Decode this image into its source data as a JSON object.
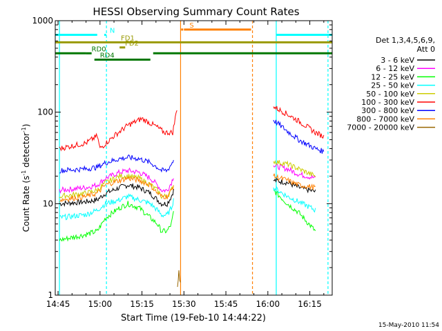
{
  "chart_data": {
    "type": "line",
    "title": "HESSI Observing Summary Count Rates",
    "xlabel": "Start Time (19-Feb-10 14:44:22)",
    "ylabel_main": "Count Rate (s",
    "ylabel_sup1": "-1",
    "ylabel_mid": " detector",
    "ylabel_sup2": "-1",
    "ylabel_end": ")",
    "y_scale": "log",
    "ylim": [
      1,
      1000
    ],
    "xlim_minutes": [
      -1,
      98
    ],
    "x_ticks": [
      {
        "t": 0,
        "label": "14:45"
      },
      {
        "t": 15,
        "label": "15:00"
      },
      {
        "t": 30,
        "label": "15:15"
      },
      {
        "t": 45,
        "label": "15:30"
      },
      {
        "t": 60,
        "label": "15:45"
      },
      {
        "t": 75,
        "label": "16:00"
      },
      {
        "t": 90,
        "label": "16:15"
      }
    ],
    "y_ticks": [
      {
        "v": 1,
        "label": "1"
      },
      {
        "v": 10,
        "label": "10"
      },
      {
        "v": 100,
        "label": "100"
      },
      {
        "v": 1000,
        "label": "1000"
      }
    ],
    "legend_header": [
      "Det 1,3,4,5,6,9,",
      "Att 0"
    ],
    "legend_placement": "right",
    "series": [
      {
        "name": "3 - 6 keV",
        "color": "#000000",
        "values": [
          [
            0.5,
            10
          ],
          [
            10,
            10.5
          ],
          [
            14,
            11
          ],
          [
            17,
            13
          ],
          [
            22,
            15
          ],
          [
            25,
            16
          ],
          [
            29,
            15
          ],
          [
            33,
            13
          ],
          [
            35.5,
            11
          ],
          [
            37,
            10
          ],
          [
            39,
            10
          ],
          [
            40.5,
            12
          ],
          [
            41.3,
            14
          ],
          [
            77,
            18
          ],
          [
            82,
            17
          ],
          [
            86,
            15
          ],
          [
            92,
            13.5
          ]
        ]
      },
      {
        "name": "6 - 12 keV",
        "color": "#ff00ff",
        "values": [
          [
            0.5,
            14
          ],
          [
            10,
            15
          ],
          [
            14,
            16
          ],
          [
            17,
            19
          ],
          [
            22,
            22
          ],
          [
            25,
            23
          ],
          [
            29,
            22
          ],
          [
            33,
            19
          ],
          [
            35.5,
            16
          ],
          [
            37,
            14
          ],
          [
            39,
            14
          ],
          [
            40.5,
            17
          ],
          [
            41.3,
            20
          ],
          [
            77,
            26
          ],
          [
            82,
            24
          ],
          [
            86,
            21
          ],
          [
            92,
            19
          ]
        ]
      },
      {
        "name": "12 - 25 keV",
        "color": "#00ff00",
        "values": [
          [
            0.5,
            4
          ],
          [
            10,
            4.6
          ],
          [
            14,
            5
          ],
          [
            17,
            7
          ],
          [
            22,
            9
          ],
          [
            25,
            10
          ],
          [
            29,
            9
          ],
          [
            33,
            7
          ],
          [
            35.5,
            6
          ],
          [
            37,
            5
          ],
          [
            39,
            5
          ],
          [
            40.5,
            6
          ],
          [
            41.3,
            8
          ],
          [
            77,
            14
          ],
          [
            82,
            10
          ],
          [
            86,
            8
          ],
          [
            92,
            5
          ]
        ]
      },
      {
        "name": "25 - 50 keV",
        "color": "#00ffff",
        "values": [
          [
            0.5,
            7
          ],
          [
            10,
            7.6
          ],
          [
            14,
            8.5
          ],
          [
            17,
            10
          ],
          [
            22,
            11
          ],
          [
            25,
            12
          ],
          [
            29,
            11
          ],
          [
            33,
            10
          ],
          [
            35.5,
            8.5
          ],
          [
            37,
            7.5
          ],
          [
            39,
            7.5
          ],
          [
            40.5,
            9
          ],
          [
            41.3,
            11
          ],
          [
            77,
            15
          ],
          [
            82,
            12
          ],
          [
            86,
            10.5
          ],
          [
            92,
            8.5
          ]
        ]
      },
      {
        "name": "50 - 100 keV",
        "color": "#cccc00",
        "values": [
          [
            0.5,
            12
          ],
          [
            10,
            13
          ],
          [
            14,
            14
          ],
          [
            17,
            17
          ],
          [
            22,
            20
          ],
          [
            25,
            20
          ],
          [
            29,
            19
          ],
          [
            33,
            16
          ],
          [
            35.5,
            14
          ],
          [
            37,
            12
          ],
          [
            39,
            12
          ],
          [
            40.5,
            14
          ],
          [
            41.3,
            16
          ],
          [
            77,
            29
          ],
          [
            82,
            27
          ],
          [
            86,
            24
          ],
          [
            92,
            20
          ]
        ]
      },
      {
        "name": "100 - 300 keV",
        "color": "#ff0000",
        "values": [
          [
            0.5,
            40
          ],
          [
            10,
            46
          ],
          [
            14,
            55
          ],
          [
            15,
            40
          ],
          [
            20,
            55
          ],
          [
            25,
            72
          ],
          [
            30,
            85
          ],
          [
            35,
            70
          ],
          [
            38,
            60
          ],
          [
            41,
            60
          ],
          [
            42.5,
            110
          ],
          [
            77,
            115
          ],
          [
            82,
            95
          ],
          [
            86,
            80
          ],
          [
            92,
            60
          ],
          [
            95,
            54
          ]
        ]
      },
      {
        "name": "300 - 800 keV",
        "color": "#0000ff",
        "values": [
          [
            0.5,
            23
          ],
          [
            10,
            24
          ],
          [
            14,
            25
          ],
          [
            17,
            28
          ],
          [
            22,
            31
          ],
          [
            25,
            32
          ],
          [
            29,
            31
          ],
          [
            33,
            28
          ],
          [
            35.5,
            25
          ],
          [
            37,
            23
          ],
          [
            39,
            23
          ],
          [
            40.5,
            27
          ],
          [
            41.3,
            30
          ],
          [
            77,
            82
          ],
          [
            82,
            62
          ],
          [
            86,
            50
          ],
          [
            92,
            40
          ],
          [
            95,
            37
          ]
        ]
      },
      {
        "name": "800 - 7000 keV",
        "color": "#ff7f00",
        "values": [
          [
            0.5,
            11
          ],
          [
            10,
            12
          ],
          [
            14,
            13
          ],
          [
            17,
            16
          ],
          [
            22,
            18
          ],
          [
            25,
            19
          ],
          [
            29,
            18
          ],
          [
            33,
            16
          ],
          [
            35.5,
            13
          ],
          [
            37,
            12
          ],
          [
            39,
            12
          ],
          [
            40.5,
            14
          ],
          [
            41.3,
            16
          ],
          [
            77,
            20
          ],
          [
            82,
            18
          ],
          [
            86,
            16
          ],
          [
            92,
            15
          ]
        ]
      },
      {
        "name": "7000 - 20000 keV",
        "color": "#996600",
        "values": [
          [
            42.7,
            1.15
          ],
          [
            43.2,
            1.8
          ],
          [
            43.8,
            1.3
          ]
        ]
      }
    ],
    "annotations": {
      "flags": [
        {
          "label": "N",
          "color": "#00ffff",
          "y": 700,
          "segments": [
            [
              -1,
              14
            ],
            [
              16.5,
              16.5
            ],
            [
              78,
              98
            ]
          ]
        },
        {
          "label": "S",
          "color": "#ff7f00",
          "y": 800,
          "segments": [
            [
              44,
              44
            ],
            [
              45,
              69
            ]
          ]
        },
        {
          "label": "FD1",
          "color": "#999900",
          "y": 580,
          "segments": [
            [
              -1,
              98
            ]
          ]
        },
        {
          "label": "FD2",
          "color": "#999900",
          "y": 510,
          "segments": [
            [
              22,
              24
            ]
          ]
        },
        {
          "label": "RD0",
          "color": "#007700",
          "y": 440,
          "segments": [
            [
              -1,
              10
            ],
            [
              10,
              12
            ],
            [
              34,
              98
            ]
          ]
        },
        {
          "label": "RD4",
          "color": "#007700",
          "y": 375,
          "segments": [
            [
              13,
              33
            ]
          ]
        }
      ],
      "vertical_lines": [
        {
          "t": 0.5,
          "color": "#00ffff",
          "style": "solid"
        },
        {
          "t": 17.3,
          "color": "#00ffff",
          "style": "dashed"
        },
        {
          "t": 43.8,
          "color": "#ff7f00",
          "style": "solid"
        },
        {
          "t": 69.5,
          "color": "#ff7f00",
          "style": "dashed"
        },
        {
          "t": 78,
          "color": "#00ffff",
          "style": "solid"
        },
        {
          "t": 96.5,
          "color": "#00ffff",
          "style": "dashed"
        }
      ]
    }
  },
  "footer": {
    "timestamp": "15-May-2010 11:54"
  }
}
